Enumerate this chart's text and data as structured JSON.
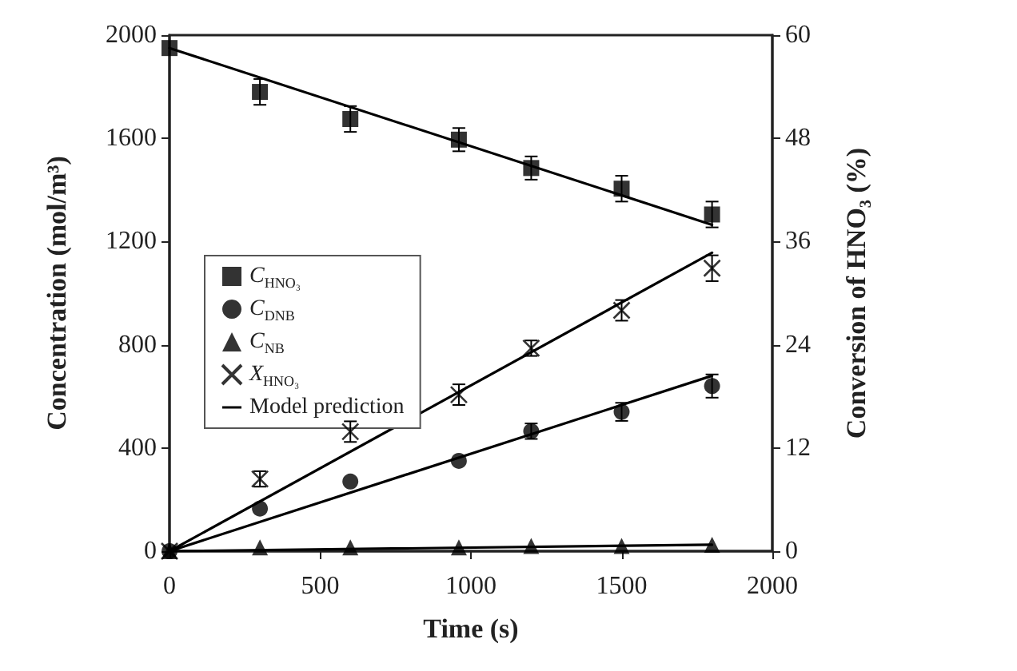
{
  "chart_data": {
    "type": "scatter",
    "xlabel": "Time (s)",
    "ylabel": "Concentration (mol/m³)",
    "y2label": "Conversion of HNO₃ (%)",
    "xlim": [
      0,
      2000
    ],
    "xticks": [
      0,
      500,
      1000,
      1500,
      2000
    ],
    "ylim": [
      0,
      2000
    ],
    "yticks": [
      0,
      400,
      800,
      1200,
      1600,
      2000
    ],
    "y2lim": [
      0,
      60
    ],
    "y2ticks": [
      0,
      12,
      24,
      36,
      48,
      60
    ],
    "grid": false,
    "legend": "left",
    "series": [
      {
        "name": "C$_{HNO₃}$",
        "marker": "square",
        "color": "#000000",
        "x": [
          0,
          300,
          600,
          960,
          1200,
          1500,
          1800
        ],
        "values": [
          1950,
          1780,
          1675,
          1595,
          1485,
          1405,
          1305
        ],
        "errors": [
          null,
          50,
          50,
          45,
          45,
          50,
          50
        ]
      },
      {
        "name": "C$_{DNB}$",
        "marker": "circle",
        "color": "#000000",
        "x": [
          0,
          300,
          600,
          960,
          1200,
          1500,
          1800
        ],
        "values": [
          0,
          165,
          270,
          350,
          465,
          540,
          640
        ],
        "errors": [
          null,
          null,
          null,
          null,
          30,
          35,
          45
        ]
      },
      {
        "name": "C$_{NB}$",
        "marker": "triangle",
        "color": "#000000",
        "x": [
          0,
          300,
          600,
          960,
          1200,
          1500,
          1800
        ],
        "values": [
          0,
          15,
          15,
          15,
          20,
          20,
          25
        ]
      },
      {
        "name": "X$_{HNO₃}$",
        "marker": "cross",
        "color": "#000000",
        "axis": "y2",
        "x": [
          0,
          300,
          600,
          960,
          1200,
          1500,
          1800
        ],
        "values": [
          0,
          8.4,
          13.9,
          18.2,
          23.6,
          28,
          32.9
        ],
        "errors": [
          null,
          0.9,
          1.2,
          1.2,
          0.9,
          1.2,
          1.5
        ]
      },
      {
        "name": "Model prediction",
        "type": "line",
        "marker": "none",
        "color": "#000000",
        "x": [
          0,
          1800
        ],
        "values": [
          1950,
          1265
        ]
      },
      {
        "type": "line",
        "marker": "none",
        "color": "#000000",
        "x": [
          0,
          1800
        ],
        "values": [
          0,
          680
        ]
      },
      {
        "type": "line",
        "marker": "none",
        "color": "#000000",
        "x": [
          0,
          1800
        ],
        "values": [
          0,
          25
        ]
      },
      {
        "type": "line",
        "marker": "none",
        "color": "#000000",
        "axis": "y2",
        "x": [
          0,
          1800
        ],
        "values": [
          0,
          34.7
        ]
      }
    ]
  }
}
